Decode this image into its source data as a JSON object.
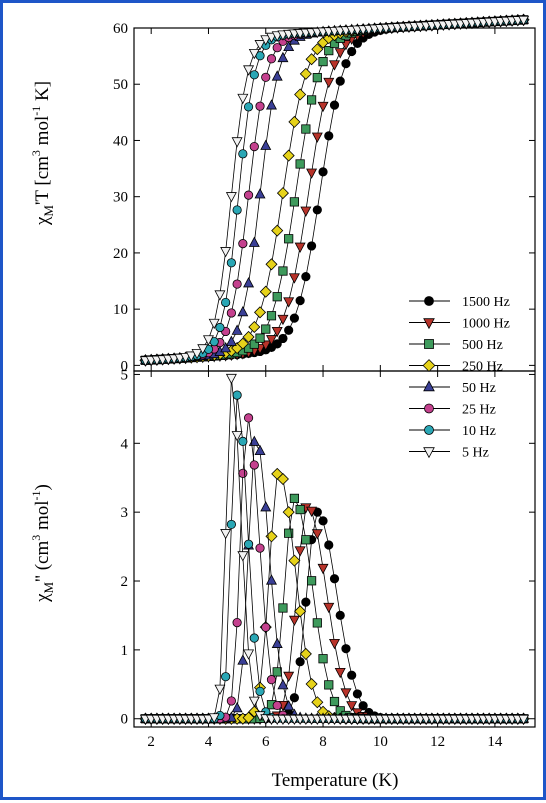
{
  "figure_border_color": "#1e56c8",
  "chart_data": {
    "type": "scatter",
    "shared_x_axis": {
      "label": "Temperature (K)",
      "ticks": [
        2,
        4,
        6,
        8,
        10,
        12,
        14
      ],
      "xlim": [
        1.4,
        15.4
      ]
    },
    "grid": false,
    "legend_placement": "right, spanning both panels",
    "panels": [
      {
        "id": "top",
        "ylabel_main": "χ",
        "ylabel_sub": "M",
        "ylabel_tail": "'T [cm",
        "ylabel_sup3": "3",
        "ylabel_mid": " mol",
        "ylabel_sup1": "-1",
        "ylabel_end": " K]",
        "yticks": [
          0,
          10,
          20,
          30,
          40,
          50,
          60
        ],
        "ylim": [
          -1,
          60
        ],
        "model": {
          "plateau": 57.5,
          "widths": [
            0.42,
            0.42,
            0.42,
            0.42,
            0.32,
            0.32,
            0.28,
            0.28
          ]
        }
      },
      {
        "id": "bottom",
        "ylabel_main": "χ",
        "ylabel_sub": "M",
        "ylabel_tail": "'' (cm",
        "ylabel_sup3": "3",
        "ylabel_mid": " mol",
        "ylabel_sup1": "-1",
        "ylabel_end": ")",
        "yticks": [
          0,
          1,
          2,
          3,
          4,
          5
        ],
        "ylim": [
          -0.12,
          5.05
        ],
        "model": {
          "widths": [
            0.68,
            0.66,
            0.62,
            0.58,
            0.46,
            0.42,
            0.36,
            0.33
          ]
        }
      }
    ],
    "x": [
      1.8,
      2.0,
      2.2,
      2.4,
      2.6,
      2.8,
      3.0,
      3.2,
      3.4,
      3.6,
      3.8,
      4.0,
      4.2,
      4.4,
      4.6,
      4.8,
      5.0,
      5.2,
      5.4,
      5.6,
      5.8,
      6.0,
      6.2,
      6.4,
      6.6,
      6.8,
      7.0,
      7.2,
      7.4,
      7.6,
      7.8,
      8.0,
      8.2,
      8.4,
      8.6,
      8.8,
      9.0,
      9.2,
      9.4,
      9.6,
      9.8,
      10.0,
      10.2,
      10.4,
      10.6,
      10.8,
      11.0,
      11.2,
      11.4,
      11.6,
      11.8,
      12.0,
      12.2,
      12.4,
      12.6,
      12.8,
      13.0,
      13.2,
      13.4,
      13.6,
      13.8,
      14.0,
      14.2,
      14.4,
      14.6,
      14.8,
      15.0
    ],
    "series": [
      {
        "name": "1500 Hz",
        "marker": "circle",
        "color": "#000000",
        "center_top": 7.9,
        "peak_T": 7.8,
        "peak": 3.0
      },
      {
        "name": "1000 Hz",
        "marker": "triangle-down",
        "color": "#b8332a",
        "center_top": 7.5,
        "peak_T": 7.45,
        "peak": 3.1
      },
      {
        "name": "500 Hz",
        "marker": "square",
        "color": "#3e9a5c",
        "center_top": 7.05,
        "peak_T": 7.0,
        "peak": 3.2
      },
      {
        "name": "250 Hz",
        "marker": "diamond",
        "color": "#e6d21a",
        "center_top": 6.6,
        "peak_T": 6.45,
        "peak": 3.6
      },
      {
        "name": "50 Hz",
        "marker": "triangle-up",
        "color": "#3a3f96",
        "center_top": 5.8,
        "peak_T": 5.65,
        "peak": 4.1
      },
      {
        "name": "25 Hz",
        "marker": "circle",
        "color": "#c4418e",
        "center_top": 5.4,
        "peak_T": 5.35,
        "peak": 4.4
      },
      {
        "name": "10 Hz",
        "marker": "circle",
        "color": "#2aa7b5",
        "center_top": 5.05,
        "peak_T": 5.0,
        "peak": 4.7
      },
      {
        "name": "5 Hz",
        "marker": "triangle-down",
        "color": "#f2f2f2",
        "center_top": 4.8,
        "peak_T": 4.8,
        "peak": 4.95
      }
    ]
  }
}
